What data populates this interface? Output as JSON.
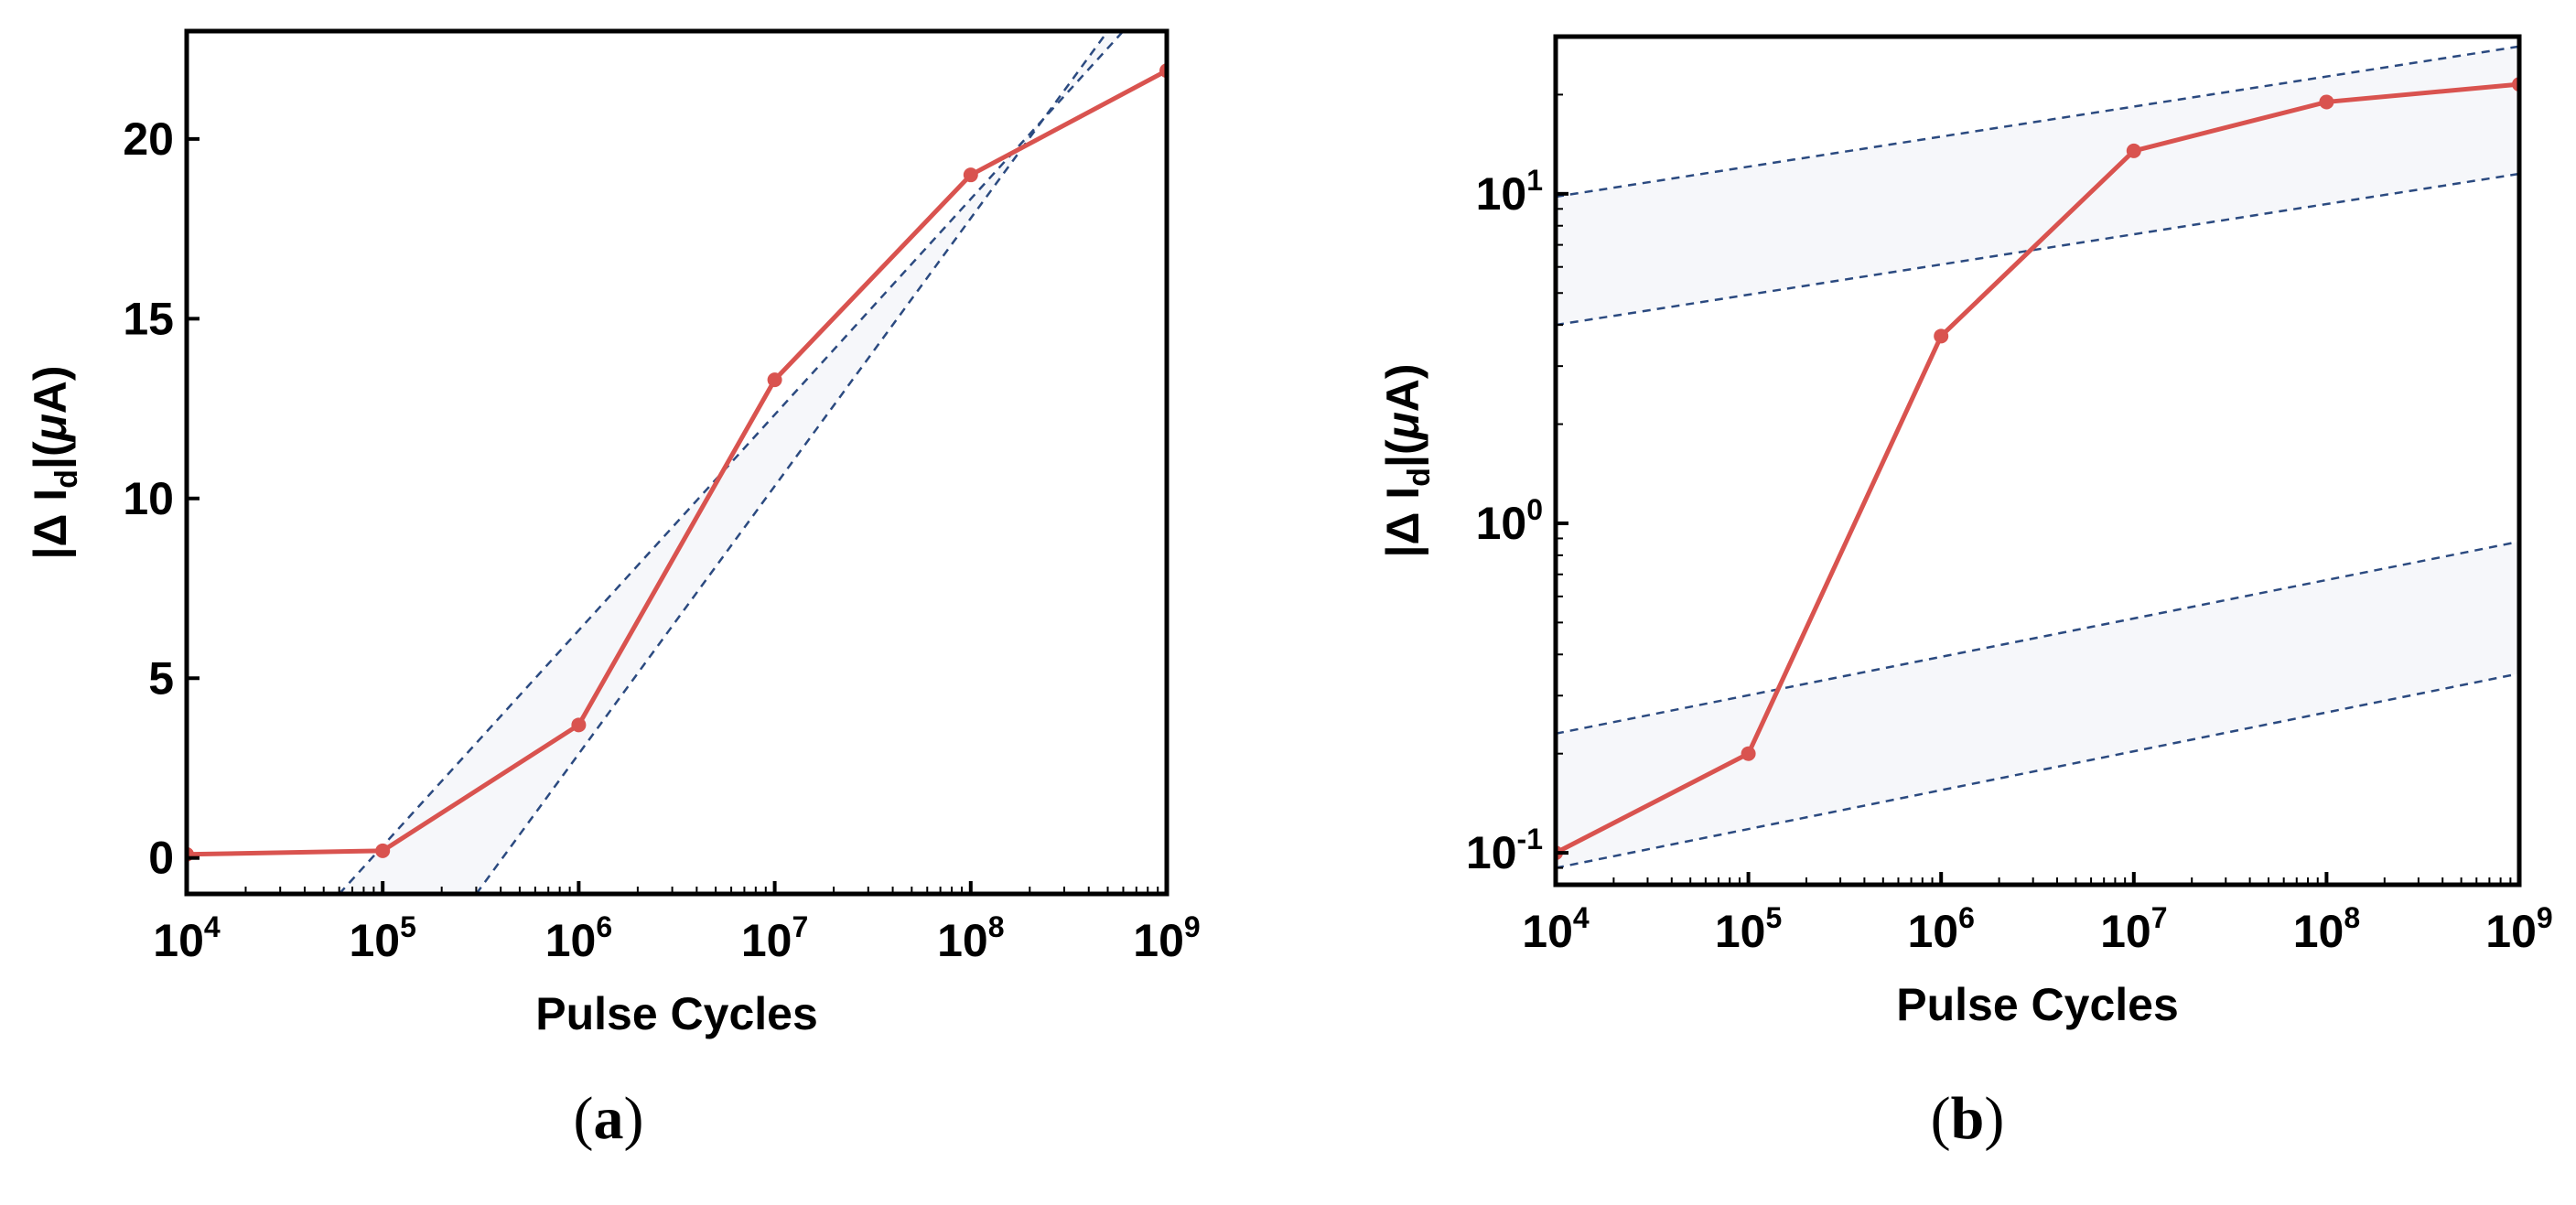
{
  "colors": {
    "series": "#d9534f",
    "fit_lines": "#2b4a80",
    "band_fill": "#f6f7fa",
    "axis": "#000000"
  },
  "chart_data": [
    {
      "type": "line",
      "panel": "a",
      "caption": "a",
      "xlabel": "Pulse Cycles",
      "ylabel": "|Δ I_d|(μA)",
      "ylabel_parts": {
        "prefix": "|Δ I",
        "sub": "d",
        "suffix": "|(",
        "mu": "μ",
        "unit": "A)"
      },
      "xscale": "log",
      "yscale": "linear",
      "xlim": [
        10000,
        1000000000
      ],
      "ylim": [
        -1,
        23
      ],
      "grid": false,
      "x_ticks": [
        {
          "value": 10000,
          "base": "10",
          "exp": "4"
        },
        {
          "value": 100000,
          "base": "10",
          "exp": "5"
        },
        {
          "value": 1000000,
          "base": "10",
          "exp": "6"
        },
        {
          "value": 10000000,
          "base": "10",
          "exp": "7"
        },
        {
          "value": 100000000,
          "base": "10",
          "exp": "8"
        },
        {
          "value": 1000000000,
          "base": "10",
          "exp": "9"
        }
      ],
      "y_ticks": [
        {
          "value": 0,
          "label": "0"
        },
        {
          "value": 5,
          "label": "5"
        },
        {
          "value": 10,
          "label": "10"
        },
        {
          "value": 15,
          "label": "15"
        },
        {
          "value": 20,
          "label": "20"
        }
      ],
      "series": [
        {
          "x": [
            10000,
            100000,
            1000000,
            10000000,
            100000000,
            1000000000
          ],
          "y": [
            0.1,
            0.2,
            3.7,
            13.3,
            19.0,
            21.9
          ]
        }
      ],
      "guide_lines": [
        {
          "x": [
            60000,
            600000000
          ],
          "y": [
            -1,
            23
          ]
        },
        {
          "x": [
            300000,
            500000000
          ],
          "y": [
            -1,
            23
          ]
        }
      ]
    },
    {
      "type": "line",
      "panel": "b",
      "caption": "b",
      "xlabel": "Pulse Cycles",
      "ylabel": "|Δ I_d|(μA)",
      "ylabel_parts": {
        "prefix": "|Δ I",
        "sub": "d",
        "suffix": "|(",
        "mu": "μ",
        "unit": "A)"
      },
      "xscale": "log",
      "yscale": "log",
      "xlim": [
        10000,
        1000000000
      ],
      "ylim": [
        0.08,
        30
      ],
      "grid": false,
      "x_ticks": [
        {
          "value": 10000,
          "base": "10",
          "exp": "4"
        },
        {
          "value": 100000,
          "base": "10",
          "exp": "5"
        },
        {
          "value": 1000000,
          "base": "10",
          "exp": "6"
        },
        {
          "value": 10000000,
          "base": "10",
          "exp": "7"
        },
        {
          "value": 100000000,
          "base": "10",
          "exp": "8"
        },
        {
          "value": 1000000000,
          "base": "10",
          "exp": "9"
        }
      ],
      "y_ticks": [
        {
          "value": 0.1,
          "base": "10",
          "exp": "-1"
        },
        {
          "value": 1,
          "base": "10",
          "exp": "0"
        },
        {
          "value": 10,
          "base": "10",
          "exp": "1"
        }
      ],
      "series": [
        {
          "x": [
            10000,
            100000,
            1000000,
            10000000,
            100000000,
            1000000000
          ],
          "y": [
            0.1,
            0.2,
            3.7,
            13.5,
            19.0,
            21.5
          ]
        }
      ],
      "guide_lines": [
        {
          "x": [
            10000,
            1000000000
          ],
          "y": [
            9.8,
            28
          ]
        },
        {
          "x": [
            10000,
            1000000000
          ],
          "y": [
            4.0,
            11.5
          ]
        },
        {
          "x": [
            10000,
            1000000000
          ],
          "y": [
            0.23,
            0.88
          ]
        },
        {
          "x": [
            10000,
            1000000000
          ],
          "y": [
            0.09,
            0.35
          ]
        }
      ]
    }
  ]
}
